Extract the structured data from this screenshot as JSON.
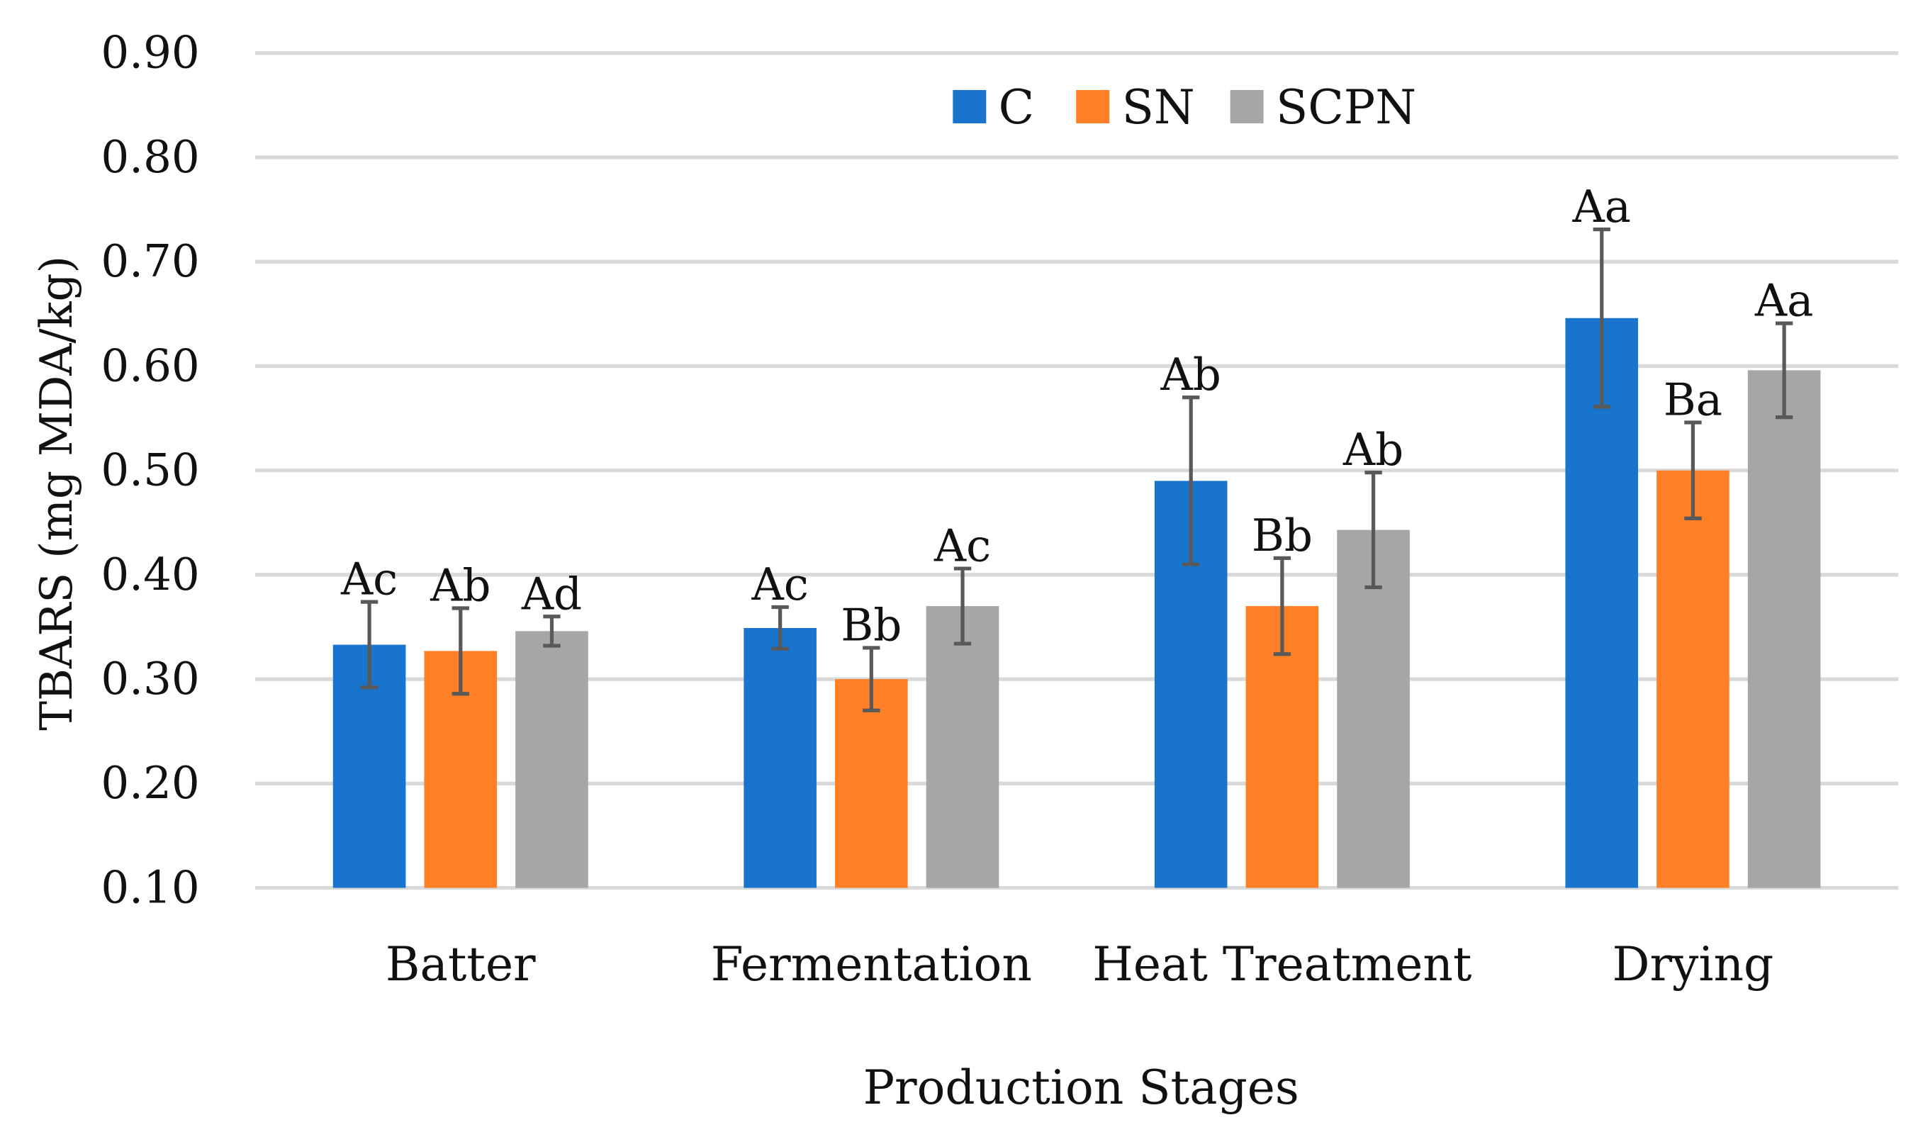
{
  "chart_data": {
    "type": "bar",
    "title": "",
    "xlabel": "Production Stages",
    "ylabel": "TBARS (mg MDA/kg)",
    "ylim": [
      0.1,
      0.9
    ],
    "yticks": [
      "0.10",
      "0.20",
      "0.30",
      "0.40",
      "0.50",
      "0.60",
      "0.70",
      "0.80",
      "0.90"
    ],
    "grid": true,
    "legend_position": "top-center",
    "categories": [
      "Batter",
      "Fermentation",
      "Heat Treatment",
      "Drying"
    ],
    "series": [
      {
        "name": "C",
        "color": "#1874CD",
        "values": [
          0.333,
          0.349,
          0.49,
          0.646
        ],
        "errors": [
          0.041,
          0.02,
          0.08,
          0.085
        ],
        "labels": [
          "Ac",
          "Ac",
          "Ab",
          "Aa"
        ]
      },
      {
        "name": "SN",
        "color": "#FF7F27",
        "values": [
          0.327,
          0.3,
          0.37,
          0.5
        ],
        "errors": [
          0.041,
          0.03,
          0.046,
          0.046
        ],
        "labels": [
          "Ab",
          "Bb",
          "Bb",
          "Ba"
        ]
      },
      {
        "name": "SCPN",
        "color": "#A6A6A6",
        "values": [
          0.346,
          0.37,
          0.443,
          0.596
        ],
        "errors": [
          0.014,
          0.036,
          0.055,
          0.045
        ],
        "labels": [
          "Ad",
          "Ac",
          "Ab",
          "Aa"
        ]
      }
    ]
  }
}
